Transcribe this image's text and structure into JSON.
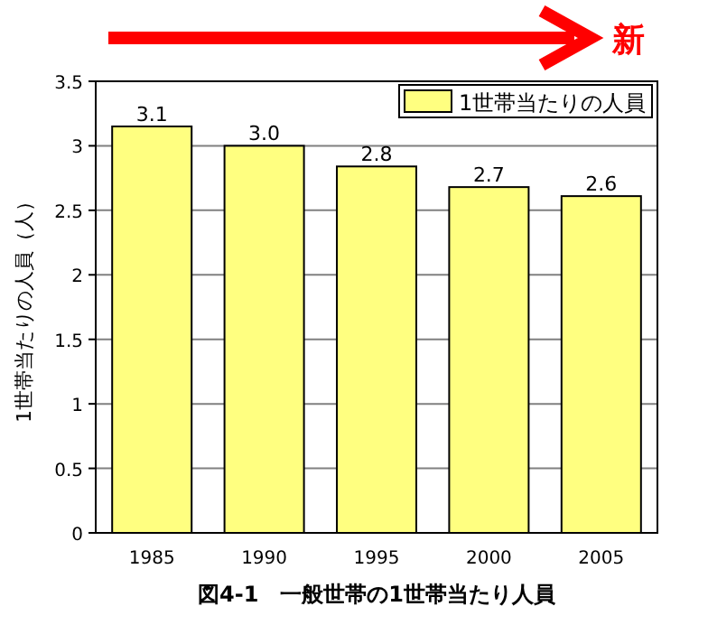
{
  "chart_data": {
    "type": "bar",
    "title": "図4-1　一般世帯の1世帯当たり人員",
    "ylabel": "1世帯当たりの人員（人）",
    "annotations": [
      "新"
    ],
    "categories": [
      "1985",
      "1990",
      "1995",
      "2000",
      "2005"
    ],
    "series": [
      {
        "name": "1世帯当たりの人員",
        "color": "#ffff80",
        "values": [
          3.15,
          3.0,
          2.84,
          2.68,
          2.61
        ],
        "value_labels": [
          "3.1",
          "3.0",
          "2.8",
          "2.7",
          "2.6"
        ]
      }
    ],
    "ylim": [
      0,
      3.5
    ],
    "yticks": [
      0,
      0.5,
      1,
      1.5,
      2,
      2.5,
      3,
      3.5
    ],
    "grid": "y",
    "legend": "top right"
  }
}
